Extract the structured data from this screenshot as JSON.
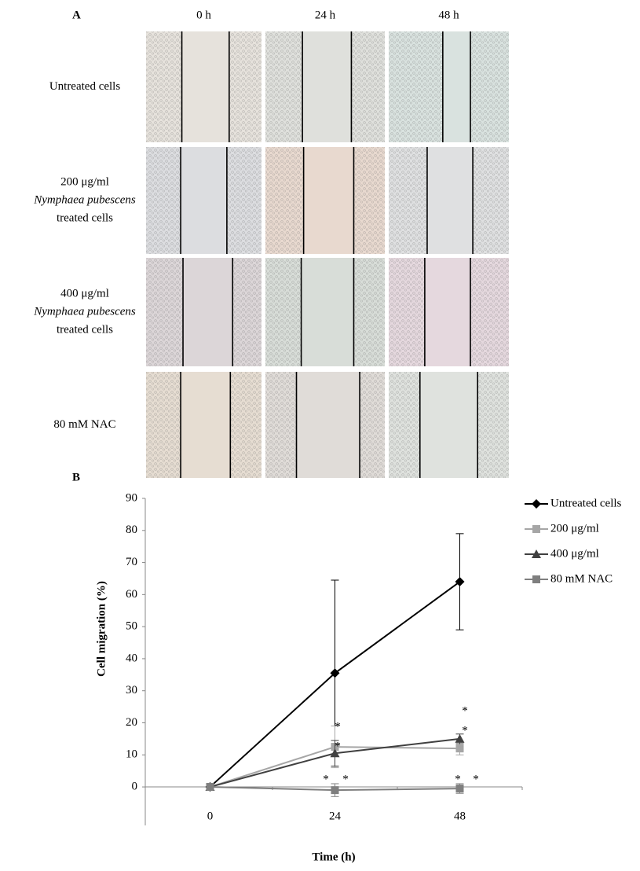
{
  "panel_a": {
    "label": "A",
    "columns": [
      "0 h",
      "24 h",
      "48 h"
    ],
    "rows": [
      [
        "Untreated cells"
      ],
      [
        "200 μg/ml",
        "Nymphaea pubescens",
        "treated cells"
      ],
      [
        "400 μg/ml",
        "Nymphaea pubescens",
        "treated cells"
      ],
      [
        "80 mM  NAC"
      ]
    ]
  },
  "chart_data": {
    "type": "line",
    "panel_label": "B",
    "x_label": "Time (h)",
    "y_label": "Cell migration (%)",
    "categories": [
      "0",
      "24",
      "48"
    ],
    "ylim": [
      -12,
      90
    ],
    "yticks": [
      0,
      10,
      20,
      30,
      40,
      50,
      60,
      70,
      80,
      90
    ],
    "series": [
      {
        "name": "Untreated cells",
        "color": "#000000",
        "marker": "diamond",
        "values": [
          0,
          35.5,
          64
        ],
        "errors": [
          0,
          29,
          15
        ]
      },
      {
        "name": "200 μg/ml",
        "color": "#a6a6a6",
        "marker": "square",
        "values": [
          0,
          12.5,
          12
        ],
        "errors": [
          0,
          6.5,
          2
        ]
      },
      {
        "name": "400 μg/ml",
        "color": "#404040",
        "marker": "triangle",
        "values": [
          0,
          10.5,
          15
        ],
        "errors": [
          0,
          4,
          1.5
        ]
      },
      {
        "name": "80 mM NAC",
        "color": "#7f7f7f",
        "marker": "square",
        "values": [
          0,
          -1,
          -0.5
        ],
        "errors": [
          0,
          2,
          1.5
        ]
      }
    ],
    "annotations": [
      "*",
      "*",
      "*",
      "*",
      "*",
      "*",
      "*",
      "*"
    ]
  }
}
